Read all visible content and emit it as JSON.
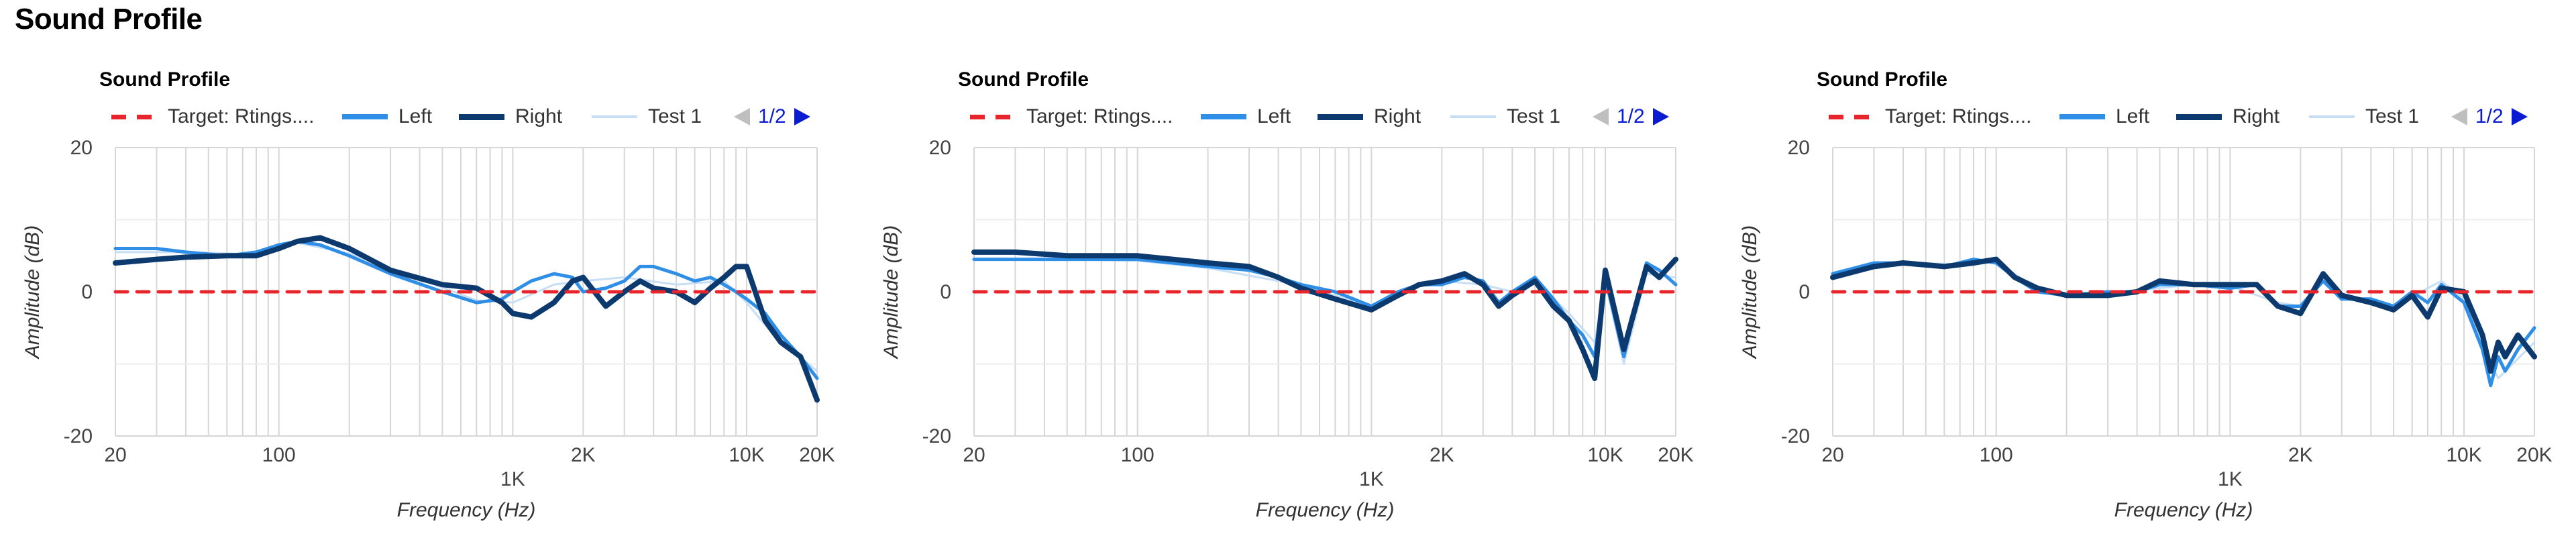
{
  "page": {
    "heading": "Sound Profile"
  },
  "legend": {
    "target": "Target: Rtings....",
    "left": "Left",
    "right": "Right",
    "test1": "Test 1",
    "pager": "1/2"
  },
  "colors": {
    "target": "#e8242c",
    "left": "#2f8ee6",
    "right": "#0d3a6e",
    "test1": "#c8def5",
    "pager": "#0a1ccf"
  },
  "chart_data": [
    {
      "type": "line",
      "title": "Sound Profile",
      "xlabel": "Frequency (Hz)",
      "ylabel": "Amplitude (dB)",
      "xscale": "log",
      "xlim": [
        20,
        20000
      ],
      "ylim": [
        -20,
        20
      ],
      "x_ticks": [
        "20",
        "100",
        "1K",
        "2K",
        "10K",
        "20K"
      ],
      "y_ticks": [
        "20",
        "0",
        "-20"
      ],
      "grid": true,
      "legend_position": "top",
      "series": [
        {
          "name": "Target: Rtings....",
          "style": "dashed",
          "x": [
            20,
            20000
          ],
          "y": [
            0,
            0
          ]
        },
        {
          "name": "Left",
          "x": [
            20,
            30,
            40,
            60,
            80,
            100,
            120,
            150,
            200,
            300,
            500,
            700,
            900,
            1000,
            1200,
            1500,
            1800,
            2000,
            2500,
            3000,
            3500,
            4000,
            5000,
            6000,
            7000,
            8000,
            9000,
            10000,
            12000,
            14000,
            17000,
            20000
          ],
          "y": [
            6,
            6,
            5.5,
            5,
            5.5,
            6.5,
            7,
            6.5,
            5,
            2.5,
            0,
            -1.5,
            -1,
            0,
            1.5,
            2.5,
            2,
            0,
            0.5,
            1.5,
            3.5,
            3.5,
            2.5,
            1.5,
            2,
            1,
            0,
            -1,
            -3,
            -6,
            -9,
            -12
          ]
        },
        {
          "name": "Right",
          "x": [
            20,
            30,
            40,
            60,
            80,
            100,
            120,
            150,
            200,
            300,
            500,
            700,
            900,
            1000,
            1200,
            1500,
            1800,
            2000,
            2500,
            3000,
            3500,
            4000,
            5000,
            6000,
            7000,
            8000,
            9000,
            10000,
            12000,
            14000,
            17000,
            20000
          ],
          "y": [
            4,
            4.5,
            4.8,
            5,
            5,
            6,
            7,
            7.5,
            6,
            3,
            1,
            0.5,
            -1.5,
            -3,
            -3.5,
            -1.5,
            1.5,
            2,
            -2,
            0,
            1.5,
            0.5,
            0,
            -1.5,
            0.5,
            2,
            3.5,
            3.5,
            -4,
            -7,
            -9,
            -15
          ]
        },
        {
          "name": "Test 1",
          "x": [
            20,
            40,
            80,
            120,
            200,
            400,
            700,
            1000,
            1500,
            2000,
            3000,
            5000,
            8000,
            10000,
            13000,
            20000
          ],
          "y": [
            5.5,
            5.5,
            5.2,
            6.8,
            5.3,
            1.8,
            -1.2,
            -1.5,
            1,
            1.5,
            2,
            1,
            1.5,
            -1.5,
            -6,
            -11
          ]
        }
      ]
    },
    {
      "type": "line",
      "title": "Sound Profile",
      "xlabel": "Frequency (Hz)",
      "ylabel": "Amplitude (dB)",
      "xscale": "log",
      "xlim": [
        20,
        20000
      ],
      "ylim": [
        -20,
        20
      ],
      "x_ticks": [
        "20",
        "100",
        "1K",
        "2K",
        "10K",
        "20K"
      ],
      "y_ticks": [
        "20",
        "0",
        "-20"
      ],
      "grid": true,
      "legend_position": "top",
      "series": [
        {
          "name": "Target: Rtings....",
          "style": "dashed",
          "x": [
            20,
            20000
          ],
          "y": [
            0,
            0
          ]
        },
        {
          "name": "Left",
          "x": [
            20,
            30,
            50,
            100,
            200,
            300,
            400,
            500,
            700,
            1000,
            1300,
            1600,
            2000,
            2500,
            3000,
            3500,
            4000,
            5000,
            6000,
            7000,
            8000,
            9000,
            10000,
            12000,
            15000,
            17000,
            20000
          ],
          "y": [
            4.5,
            4.5,
            4.5,
            4.5,
            3.5,
            3,
            2,
            1,
            0,
            -2,
            0,
            1,
            1,
            2,
            1.5,
            -1.5,
            0,
            2,
            -1,
            -4,
            -6,
            -9,
            2,
            -9,
            4,
            3,
            1
          ]
        },
        {
          "name": "Right",
          "x": [
            20,
            30,
            50,
            100,
            200,
            300,
            400,
            500,
            700,
            1000,
            1300,
            1600,
            2000,
            2500,
            3000,
            3500,
            4000,
            5000,
            6000,
            7000,
            8000,
            9000,
            10000,
            12000,
            15000,
            17000,
            20000
          ],
          "y": [
            5.5,
            5.5,
            5,
            5,
            4,
            3.5,
            2,
            0.5,
            -1,
            -2.5,
            -0.5,
            1,
            1.5,
            2.5,
            1,
            -2,
            -0.5,
            1.5,
            -2,
            -4,
            -8,
            -12,
            3,
            -8,
            3.5,
            2,
            4.5
          ]
        },
        {
          "name": "Test 1",
          "x": [
            20,
            50,
            100,
            200,
            400,
            700,
            1000,
            1500,
            2000,
            3000,
            4000,
            5000,
            7000,
            9000,
            10000,
            12000,
            15000,
            20000
          ],
          "y": [
            4.5,
            4.5,
            4.3,
            3.3,
            1.5,
            -0.5,
            -2.3,
            0.5,
            1.5,
            1,
            0,
            1.5,
            -3,
            -7,
            1.5,
            -10,
            2.5,
            2
          ]
        }
      ]
    },
    {
      "type": "line",
      "title": "Sound Profile",
      "xlabel": "Frequency (Hz)",
      "ylabel": "Amplitude (dB)",
      "xscale": "log",
      "xlim": [
        20,
        20000
      ],
      "ylim": [
        -20,
        20
      ],
      "x_ticks": [
        "20",
        "100",
        "1K",
        "2K",
        "10K",
        "20K"
      ],
      "y_ticks": [
        "20",
        "0",
        "-20"
      ],
      "grid": true,
      "legend_position": "top",
      "series": [
        {
          "name": "Target: Rtings....",
          "style": "dashed",
          "x": [
            20,
            20000
          ],
          "y": [
            0,
            0
          ]
        },
        {
          "name": "Left",
          "x": [
            20,
            30,
            40,
            60,
            80,
            100,
            120,
            150,
            200,
            300,
            400,
            500,
            700,
            1000,
            1300,
            1600,
            2000,
            2500,
            3000,
            4000,
            5000,
            6000,
            7000,
            8000,
            10000,
            12000,
            13000,
            14000,
            15000,
            17000,
            20000
          ],
          "y": [
            2.5,
            4,
            4,
            3.5,
            4.5,
            4,
            2,
            0,
            -0.5,
            0,
            0,
            1,
            1,
            0.5,
            1,
            -2,
            -2,
            1.5,
            -1,
            -1,
            -2,
            0,
            -1.5,
            1,
            -1.5,
            -8,
            -13,
            -9,
            -11,
            -8,
            -5
          ]
        },
        {
          "name": "Right",
          "x": [
            20,
            30,
            40,
            60,
            80,
            100,
            120,
            150,
            200,
            300,
            400,
            500,
            700,
            1000,
            1300,
            1600,
            2000,
            2500,
            3000,
            4000,
            5000,
            6000,
            7000,
            8000,
            10000,
            12000,
            13000,
            14000,
            15000,
            17000,
            20000
          ],
          "y": [
            2,
            3.5,
            4,
            3.5,
            4,
            4.5,
            2,
            0.5,
            -0.5,
            -0.5,
            0,
            1.5,
            1,
            1,
            1,
            -2,
            -3,
            2.5,
            -0.5,
            -1.5,
            -2.5,
            -0.5,
            -3.5,
            0.5,
            0,
            -6,
            -11,
            -7,
            -9,
            -6,
            -9
          ]
        },
        {
          "name": "Test 1",
          "x": [
            20,
            40,
            80,
            100,
            150,
            200,
            400,
            700,
            1000,
            1600,
            2000,
            2500,
            3000,
            5000,
            8000,
            10000,
            12000,
            14000,
            20000
          ],
          "y": [
            2.5,
            4,
            3.8,
            4.3,
            0.3,
            -0.5,
            0.2,
            1,
            0.8,
            -1.5,
            -2,
            2,
            -0.5,
            -2,
            1.5,
            -1,
            -7,
            -12,
            -7
          ]
        }
      ]
    }
  ]
}
